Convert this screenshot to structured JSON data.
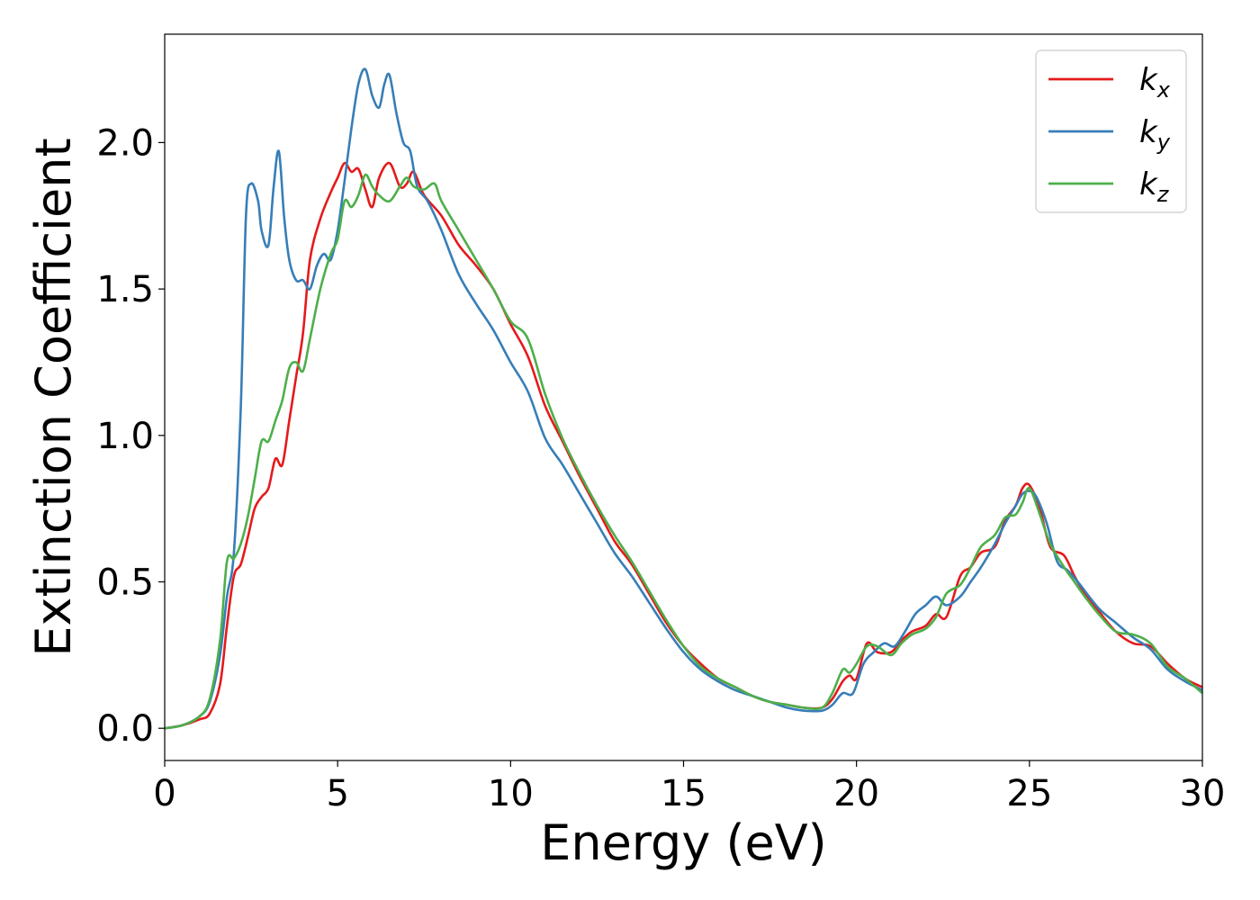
{
  "chart_data": {
    "type": "line",
    "xlabel": "Energy (eV)",
    "ylabel": "Extinction Coefficient",
    "xlim": [
      0,
      30
    ],
    "ylim": [
      -0.11,
      2.37
    ],
    "xticks": [
      0,
      5,
      10,
      15,
      20,
      25,
      30
    ],
    "xtick_labels": [
      "0",
      "5",
      "10",
      "15",
      "20",
      "25",
      "30"
    ],
    "yticks": [
      0.0,
      0.5,
      1.0,
      1.5,
      2.0
    ],
    "ytick_labels": [
      "0.0",
      "0.5",
      "1.0",
      "1.5",
      "2.0"
    ],
    "grid": false,
    "legend_position": "top-right",
    "series": [
      {
        "name": "k",
        "subscript": "x",
        "color": "#e41a1c",
        "x": [
          0,
          0.5,
          1.0,
          1.3,
          1.6,
          1.8,
          2.0,
          2.2,
          2.4,
          2.6,
          2.8,
          3.0,
          3.2,
          3.4,
          3.6,
          3.8,
          4.0,
          4.2,
          4.5,
          4.8,
          5.0,
          5.2,
          5.4,
          5.6,
          5.8,
          6.0,
          6.2,
          6.5,
          6.8,
          7.0,
          7.2,
          7.5,
          8.0,
          8.5,
          9.0,
          9.5,
          10.0,
          10.5,
          11.0,
          11.5,
          12.0,
          12.5,
          13.0,
          13.5,
          14.0,
          14.5,
          15.0,
          15.5,
          16.0,
          16.5,
          17.0,
          17.5,
          18.0,
          18.5,
          19.0,
          19.3,
          19.6,
          19.8,
          20.0,
          20.3,
          20.6,
          21.0,
          21.3,
          21.6,
          22.0,
          22.3,
          22.6,
          23.0,
          23.3,
          23.6,
          24.0,
          24.3,
          24.6,
          24.8,
          25.0,
          25.3,
          25.6,
          26.0,
          26.3,
          26.6,
          27.0,
          27.5,
          28.0,
          28.5,
          29.0,
          29.5,
          30.0
        ],
        "y": [
          0.0,
          0.01,
          0.03,
          0.05,
          0.15,
          0.35,
          0.52,
          0.56,
          0.65,
          0.75,
          0.79,
          0.82,
          0.92,
          0.9,
          1.05,
          1.2,
          1.35,
          1.6,
          1.74,
          1.83,
          1.88,
          1.93,
          1.9,
          1.91,
          1.84,
          1.78,
          1.88,
          1.93,
          1.85,
          1.86,
          1.9,
          1.82,
          1.75,
          1.65,
          1.58,
          1.5,
          1.38,
          1.27,
          1.1,
          0.98,
          0.86,
          0.75,
          0.64,
          0.56,
          0.46,
          0.36,
          0.28,
          0.22,
          0.17,
          0.14,
          0.11,
          0.09,
          0.08,
          0.07,
          0.07,
          0.1,
          0.16,
          0.18,
          0.17,
          0.29,
          0.26,
          0.26,
          0.3,
          0.33,
          0.35,
          0.39,
          0.38,
          0.52,
          0.55,
          0.6,
          0.62,
          0.71,
          0.76,
          0.82,
          0.83,
          0.75,
          0.62,
          0.59,
          0.52,
          0.46,
          0.4,
          0.33,
          0.29,
          0.28,
          0.22,
          0.17,
          0.14
        ]
      },
      {
        "name": "k",
        "subscript": "y",
        "color": "#377eb8",
        "x": [
          0,
          0.5,
          1.0,
          1.3,
          1.6,
          1.8,
          2.0,
          2.2,
          2.35,
          2.5,
          2.7,
          2.8,
          3.0,
          3.15,
          3.3,
          3.45,
          3.6,
          3.8,
          4.0,
          4.2,
          4.4,
          4.6,
          4.8,
          5.0,
          5.2,
          5.4,
          5.6,
          5.8,
          6.0,
          6.2,
          6.35,
          6.5,
          6.7,
          6.9,
          7.1,
          7.3,
          7.6,
          8.0,
          8.5,
          9.0,
          9.5,
          10.0,
          10.5,
          11.0,
          11.5,
          12.0,
          12.5,
          13.0,
          13.5,
          14.0,
          14.5,
          15.0,
          15.5,
          16.0,
          16.5,
          17.0,
          17.5,
          18.0,
          18.5,
          19.0,
          19.3,
          19.6,
          19.9,
          20.2,
          20.5,
          20.8,
          21.1,
          21.4,
          21.7,
          22.0,
          22.3,
          22.6,
          23.0,
          23.3,
          23.6,
          24.0,
          24.3,
          24.6,
          24.8,
          25.0,
          25.2,
          25.5,
          25.8,
          26.1,
          26.4,
          27.0,
          27.5,
          28.0,
          28.5,
          29.0,
          29.5,
          30.0
        ],
        "y": [
          0.0,
          0.01,
          0.04,
          0.09,
          0.25,
          0.45,
          0.6,
          1.1,
          1.75,
          1.86,
          1.8,
          1.7,
          1.65,
          1.85,
          1.97,
          1.75,
          1.6,
          1.53,
          1.53,
          1.5,
          1.58,
          1.62,
          1.6,
          1.7,
          1.87,
          2.05,
          2.2,
          2.25,
          2.16,
          2.12,
          2.2,
          2.23,
          2.1,
          2.0,
          1.97,
          1.85,
          1.8,
          1.7,
          1.55,
          1.45,
          1.36,
          1.25,
          1.15,
          0.99,
          0.9,
          0.8,
          0.7,
          0.6,
          0.52,
          0.43,
          0.34,
          0.26,
          0.2,
          0.16,
          0.13,
          0.11,
          0.09,
          0.07,
          0.06,
          0.06,
          0.08,
          0.12,
          0.12,
          0.22,
          0.26,
          0.29,
          0.28,
          0.33,
          0.39,
          0.42,
          0.45,
          0.42,
          0.45,
          0.5,
          0.55,
          0.63,
          0.7,
          0.76,
          0.8,
          0.81,
          0.79,
          0.7,
          0.57,
          0.54,
          0.5,
          0.41,
          0.36,
          0.31,
          0.27,
          0.2,
          0.16,
          0.13
        ]
      },
      {
        "name": "k",
        "subscript": "z",
        "color": "#4daf4a",
        "x": [
          0,
          0.5,
          1.0,
          1.3,
          1.6,
          1.8,
          2.0,
          2.2,
          2.4,
          2.6,
          2.8,
          3.0,
          3.2,
          3.4,
          3.6,
          3.8,
          4.0,
          4.2,
          4.5,
          4.8,
          5.0,
          5.2,
          5.4,
          5.6,
          5.8,
          6.0,
          6.2,
          6.5,
          6.8,
          7.0,
          7.2,
          7.5,
          7.8,
          8.0,
          8.5,
          9.0,
          9.5,
          10.0,
          10.5,
          11.0,
          11.5,
          12.0,
          12.5,
          13.0,
          13.5,
          14.0,
          14.5,
          15.0,
          15.5,
          16.0,
          16.5,
          17.0,
          17.5,
          18.0,
          18.5,
          19.0,
          19.3,
          19.6,
          19.8,
          20.0,
          20.3,
          20.6,
          21.0,
          21.3,
          21.6,
          22.0,
          22.3,
          22.6,
          23.0,
          23.3,
          23.6,
          24.0,
          24.3,
          24.6,
          24.8,
          25.0,
          25.3,
          25.6,
          26.0,
          26.3,
          26.6,
          27.0,
          27.5,
          28.0,
          28.5,
          29.0,
          29.5,
          30.0
        ],
        "y": [
          0.0,
          0.01,
          0.04,
          0.1,
          0.3,
          0.57,
          0.58,
          0.63,
          0.72,
          0.85,
          0.98,
          0.98,
          1.05,
          1.12,
          1.23,
          1.25,
          1.22,
          1.33,
          1.5,
          1.62,
          1.67,
          1.8,
          1.78,
          1.82,
          1.89,
          1.85,
          1.82,
          1.8,
          1.85,
          1.88,
          1.85,
          1.84,
          1.86,
          1.8,
          1.7,
          1.6,
          1.5,
          1.39,
          1.33,
          1.14,
          0.99,
          0.87,
          0.76,
          0.66,
          0.57,
          0.47,
          0.37,
          0.28,
          0.21,
          0.17,
          0.14,
          0.11,
          0.09,
          0.08,
          0.07,
          0.07,
          0.12,
          0.2,
          0.19,
          0.22,
          0.28,
          0.28,
          0.25,
          0.29,
          0.32,
          0.34,
          0.38,
          0.46,
          0.49,
          0.55,
          0.62,
          0.66,
          0.72,
          0.73,
          0.77,
          0.82,
          0.73,
          0.63,
          0.55,
          0.5,
          0.45,
          0.39,
          0.33,
          0.32,
          0.29,
          0.21,
          0.17,
          0.12
        ]
      }
    ]
  }
}
